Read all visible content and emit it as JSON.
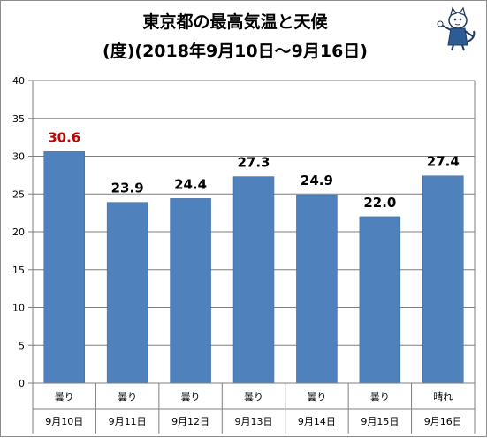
{
  "chart_data": {
    "type": "bar",
    "title_line1": "東京都の最高気温と天候",
    "title_line2": "(度)(2018年9月10日～9月16日)",
    "categories": [
      "9月10日",
      "9月11日",
      "9月12日",
      "9月13日",
      "9月14日",
      "9月15日",
      "9月16日"
    ],
    "weather": [
      "曇り",
      "曇り",
      "曇り",
      "曇り",
      "曇り",
      "曇り",
      "晴れ"
    ],
    "values": [
      30.6,
      23.9,
      24.4,
      27.3,
      24.9,
      22.0,
      27.4
    ],
    "value_labels": [
      "30.6",
      "23.9",
      "24.4",
      "27.3",
      "24.9",
      "22.0",
      "27.4"
    ],
    "highlight_index": 0,
    "ylim": [
      0,
      40
    ],
    "yticks": [
      "0",
      "5",
      "10",
      "15",
      "20",
      "25",
      "30",
      "35",
      "40"
    ],
    "grid": true,
    "legend": "none",
    "colors": {
      "bar": "#4f81bd",
      "bar_edge": "#3a6898",
      "highlight_label": "#c00000",
      "label": "#000000",
      "grid": "#7f7f7f",
      "axis": "#7f7f7f"
    }
  },
  "mascot": {
    "icon": "cartoon-fox-character-icon"
  }
}
